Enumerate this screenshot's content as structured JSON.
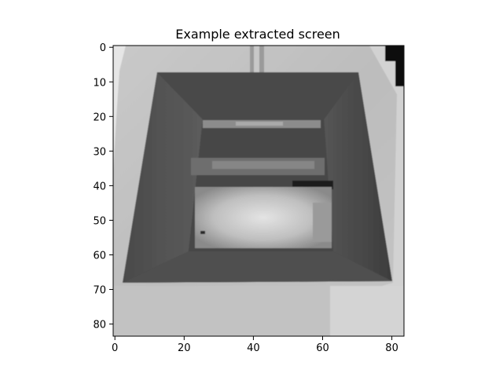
{
  "chart_data": {
    "type": "heatmap",
    "title": "Example extracted screen",
    "xlabel": "",
    "ylabel": "",
    "colormap": "grayscale",
    "image_shape": [
      84,
      84
    ],
    "xlim": [
      -0.5,
      83.5
    ],
    "ylim": [
      83.5,
      -0.5
    ],
    "x_ticks": [
      0,
      20,
      40,
      60,
      80
    ],
    "y_ticks": [
      0,
      10,
      20,
      30,
      40,
      50,
      60,
      70,
      80
    ],
    "x_tick_labels": [
      "0",
      "20",
      "40",
      "60",
      "80"
    ],
    "y_tick_labels": [
      "0",
      "10",
      "20",
      "30",
      "40",
      "50",
      "60",
      "70",
      "80"
    ],
    "grid": false,
    "content_description": "Downsampled grayscale game frame: a dark trapezoidal bin seen from above on a light floor, with lighter shelf slats at its far edge and a bright patch near its bottom"
  }
}
